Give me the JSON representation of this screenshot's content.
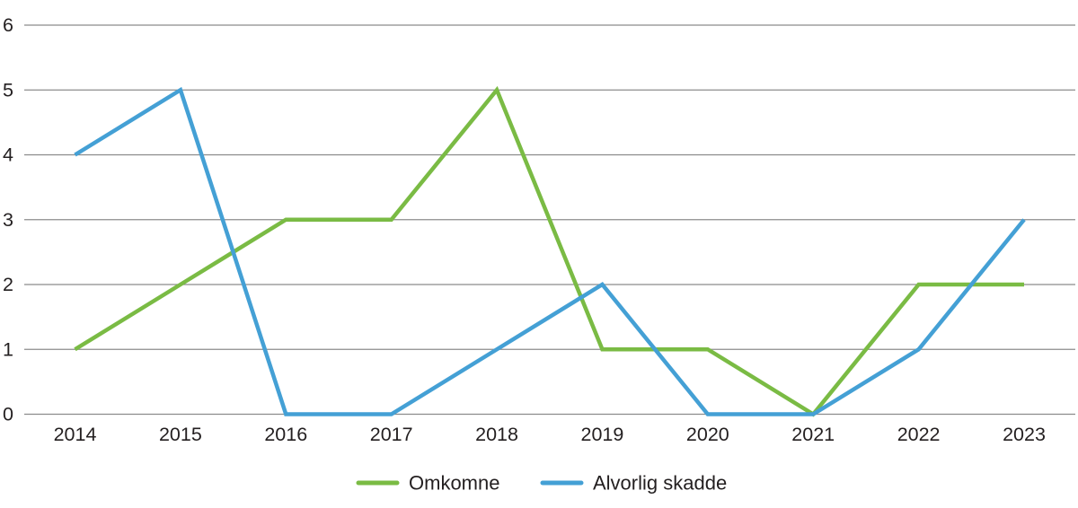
{
  "chart_data": {
    "type": "line",
    "title": "",
    "xlabel": "",
    "ylabel": "",
    "x": [
      2014,
      2015,
      2016,
      2017,
      2018,
      2019,
      2020,
      2021,
      2022,
      2023
    ],
    "series": [
      {
        "name": "Omkomne",
        "color": "#7ABB44",
        "values": [
          1,
          2,
          3,
          3,
          5,
          1,
          1,
          0,
          2,
          2
        ]
      },
      {
        "name": "Alvorlig skadde",
        "color": "#44A0D5",
        "values": [
          4,
          5,
          0,
          0,
          1,
          2,
          0,
          0,
          1,
          3
        ]
      }
    ],
    "ylim": [
      0,
      6
    ],
    "ytick_step": 1,
    "yticks": [
      0,
      1,
      2,
      3,
      4,
      5,
      6
    ],
    "grid": "horizontal",
    "legend_position": "bottom-center",
    "colors": {
      "gridline": "#8C8C8C",
      "text": "#231F20",
      "background": "#FFFFFF"
    }
  }
}
